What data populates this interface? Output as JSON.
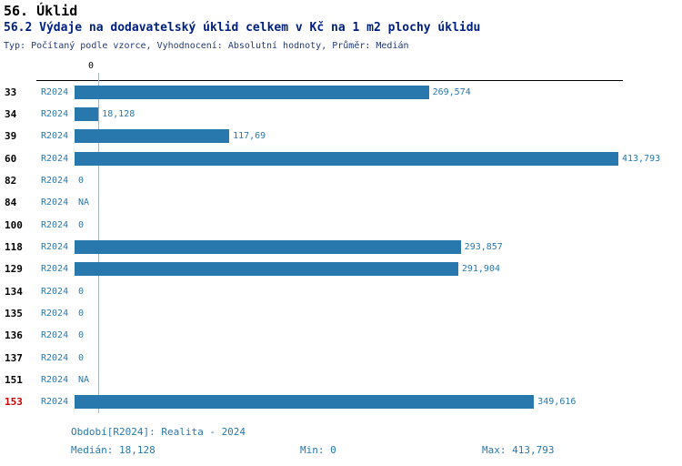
{
  "header": {
    "title": "56. Úklid",
    "subtitle": "56.2 Výdaje na dodavatelský úklid celkem v Kč na 1 m2 plochy úklidu",
    "meta": "Typ: Počítaný podle vzorce, Vyhodnocení: Absolutní hodnoty, Průměr: Medián"
  },
  "chart_data": {
    "type": "bar",
    "orientation": "horizontal",
    "title": "56. Úklid",
    "subtitle": "56.2 Výdaje na dodavatelský úklid celkem v Kč na 1 m2 plochy úklidu",
    "series_label": "R2024",
    "categories": [
      "33",
      "34",
      "39",
      "60",
      "82",
      "84",
      "100",
      "118",
      "129",
      "134",
      "135",
      "136",
      "137",
      "151",
      "153"
    ],
    "values": [
      269.574,
      18.128,
      117.69,
      413.793,
      0,
      null,
      0,
      293.857,
      291.904,
      0,
      0,
      0,
      0,
      null,
      349.616
    ],
    "value_labels": [
      "269,574",
      "18,128",
      "117,69",
      "413,793",
      "0",
      "NA",
      "0",
      "293,857",
      "291,904",
      "0",
      "0",
      "0",
      "0",
      "NA",
      "349,616"
    ],
    "highlighted_category": "153",
    "axis_origin_label": "0",
    "xlim": [
      0,
      413.793
    ],
    "median": 18.128,
    "grid": "median-line-only",
    "legend": "none"
  },
  "footer": {
    "period": "Období[R2024]: Realita - 2024",
    "median": "Medián: 18,128",
    "min": "Min: 0",
    "max": "Max: 413,793"
  },
  "colors": {
    "bar": "#2878ae",
    "value_label": "#2878ae",
    "series_label": "#2878ae",
    "category_label": "#000000",
    "highlighted_category": "#cc0000",
    "subtitle": "#002080",
    "meta": "#223a75",
    "median_line": "#a5b8c6",
    "footer_text": "#2878ae",
    "axis": "#000000"
  }
}
